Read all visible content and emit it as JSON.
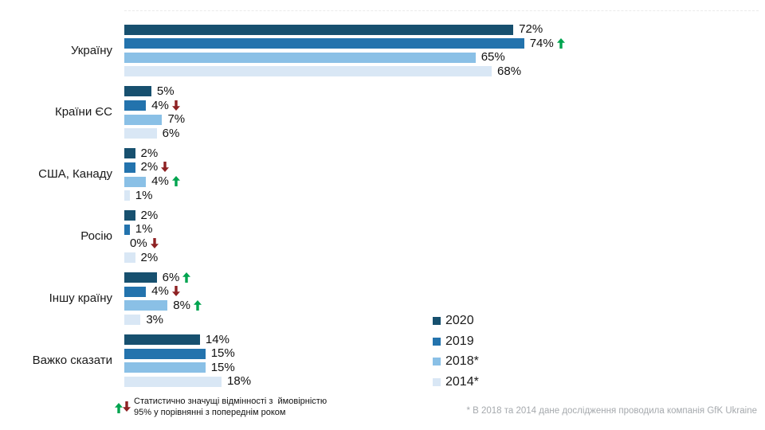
{
  "chart_data": {
    "type": "bar",
    "orientation": "horizontal",
    "unit": "%",
    "xlim": [
      0,
      100
    ],
    "grid": "off",
    "legend_position": "bottom-right",
    "categories": [
      "Україну",
      "Країни ЄС",
      "США, Канаду",
      "Росію",
      "Іншу країну",
      "Важко сказати"
    ],
    "series": [
      {
        "name": "2020",
        "color": "#17506F",
        "values": [
          72,
          5,
          2,
          2,
          6,
          14
        ],
        "arrows": [
          null,
          null,
          null,
          null,
          "up",
          null
        ]
      },
      {
        "name": "2019",
        "color": "#2373AD",
        "values": [
          74,
          4,
          2,
          1,
          4,
          15
        ],
        "arrows": [
          "up",
          "down",
          "down",
          null,
          "down",
          null
        ]
      },
      {
        "name": "2018*",
        "color": "#8AC0E6",
        "values": [
          65,
          7,
          4,
          0,
          8,
          15
        ],
        "arrows": [
          null,
          null,
          "up",
          "down",
          "up",
          null
        ]
      },
      {
        "name": "2014*",
        "color": "#D9E7F5",
        "values": [
          68,
          6,
          1,
          2,
          3,
          18
        ],
        "arrows": [
          null,
          null,
          null,
          null,
          null,
          null
        ]
      }
    ]
  },
  "arrow_colors": {
    "up": "#00A44F",
    "down": "#8E2123"
  },
  "footnotes": {
    "significance": "Статистично значущі відмінності з  ймовірністю\n95% у порівнянні з попереднім роком",
    "source": "* В 2018 та 2014 дане дослідження проводила компанія GfK Ukraine"
  }
}
